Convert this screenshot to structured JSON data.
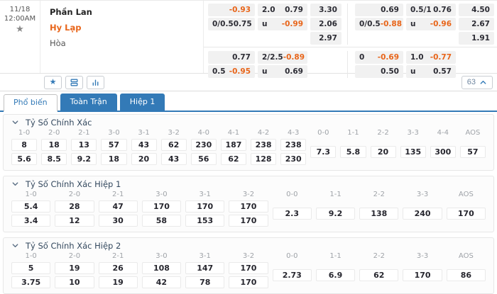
{
  "glyphs": {
    "star": "★"
  },
  "match": {
    "date": "11/18",
    "time": "12:00AM",
    "home": "Phần Lan",
    "away": "Hy Lạp",
    "draw": "Hòa",
    "odds_groups": [
      {
        "hdp": [
          {
            "label": "",
            "value": "-0.93",
            "neg": true
          },
          {
            "label": "0/0.5",
            "value": "0.75",
            "neg": false
          }
        ],
        "ou": [
          {
            "label": "2.0",
            "value": "0.79",
            "neg": false
          },
          {
            "label": "u",
            "value": "-0.99",
            "neg": true
          }
        ],
        "x12": [
          "3.30",
          "2.06",
          "2.97"
        ],
        "hdp2": [
          {
            "label": "",
            "value": "0.77",
            "neg": false
          },
          {
            "label": "0.5",
            "value": "-0.95",
            "neg": true
          }
        ],
        "ou2": [
          {
            "label": "2/2.5",
            "value": "-0.89",
            "neg": true
          },
          {
            "label": "u",
            "value": "0.69",
            "neg": false
          }
        ]
      },
      {
        "hdp": [
          {
            "label": "",
            "value": "0.69",
            "neg": false
          },
          {
            "label": "0/0.5",
            "value": "-0.88",
            "neg": true
          }
        ],
        "ou": [
          {
            "label": "0.5/1",
            "value": "0.76",
            "neg": false
          },
          {
            "label": "u",
            "value": "-0.96",
            "neg": true
          }
        ],
        "x12": [
          "4.50",
          "2.67",
          "1.91"
        ],
        "hdp2": [
          {
            "label": "0",
            "value": "-0.69",
            "neg": true
          },
          {
            "label": "",
            "value": "0.50",
            "neg": false
          }
        ],
        "ou2": [
          {
            "label": "1.0",
            "value": "-0.77",
            "neg": true
          },
          {
            "label": "u",
            "value": "0.57",
            "neg": false
          }
        ]
      }
    ]
  },
  "action_bar": {
    "count": "63",
    "icons": [
      "favorite-star-icon",
      "stack-icon",
      "bar-chart-icon",
      "collapse-chevron-icon"
    ]
  },
  "tabs": [
    {
      "label": "Phổ biến",
      "active": true
    },
    {
      "label": "Toàn Trận",
      "active": false
    },
    {
      "label": "Hiệp 1",
      "active": false
    }
  ],
  "sections": [
    {
      "title": "Tỷ Số Chính Xác",
      "score_columns": [
        "1-0",
        "2-0",
        "2-1",
        "3-0",
        "3-1",
        "3-2",
        "4-0",
        "4-1",
        "4-2",
        "4-3"
      ],
      "home_odds": [
        "8",
        "18",
        "13",
        "57",
        "43",
        "62",
        "230",
        "187",
        "238",
        "238"
      ],
      "away_odds": [
        "5.6",
        "8.5",
        "9.2",
        "18",
        "20",
        "43",
        "56",
        "62",
        "128",
        "230"
      ],
      "draw_columns": [
        "0-0",
        "1-1",
        "2-2",
        "3-3",
        "4-4",
        "AOS"
      ],
      "draw_odds": [
        "7.3",
        "5.8",
        "20",
        "135",
        "300",
        "57"
      ]
    },
    {
      "title": "Tỷ Số Chính Xác Hiệp 1",
      "score_columns": [
        "1-0",
        "2-0",
        "2-1",
        "3-0",
        "3-1",
        "3-2"
      ],
      "home_odds": [
        "5.4",
        "28",
        "47",
        "170",
        "170",
        "170"
      ],
      "away_odds": [
        "3.4",
        "12",
        "30",
        "58",
        "153",
        "170"
      ],
      "draw_columns": [
        "0-0",
        "1-1",
        "2-2",
        "3-3",
        "AOS"
      ],
      "draw_odds": [
        "2.3",
        "9.2",
        "138",
        "240",
        "170"
      ]
    },
    {
      "title": "Tỷ Số Chính Xác Hiệp 2",
      "score_columns": [
        "1-0",
        "2-0",
        "2-1",
        "3-0",
        "3-1",
        "3-2"
      ],
      "home_odds": [
        "5",
        "19",
        "26",
        "108",
        "147",
        "170"
      ],
      "away_odds": [
        "3.75",
        "10",
        "19",
        "42",
        "78",
        "170"
      ],
      "draw_columns": [
        "0-0",
        "1-1",
        "2-2",
        "3-3",
        "AOS"
      ],
      "draw_odds": [
        "2.73",
        "6.9",
        "62",
        "170",
        "86"
      ]
    }
  ],
  "colors": {
    "accent_blue": "#337ab7",
    "negative_orange": "#e8651a",
    "odds_dark": "#2c2c34"
  }
}
